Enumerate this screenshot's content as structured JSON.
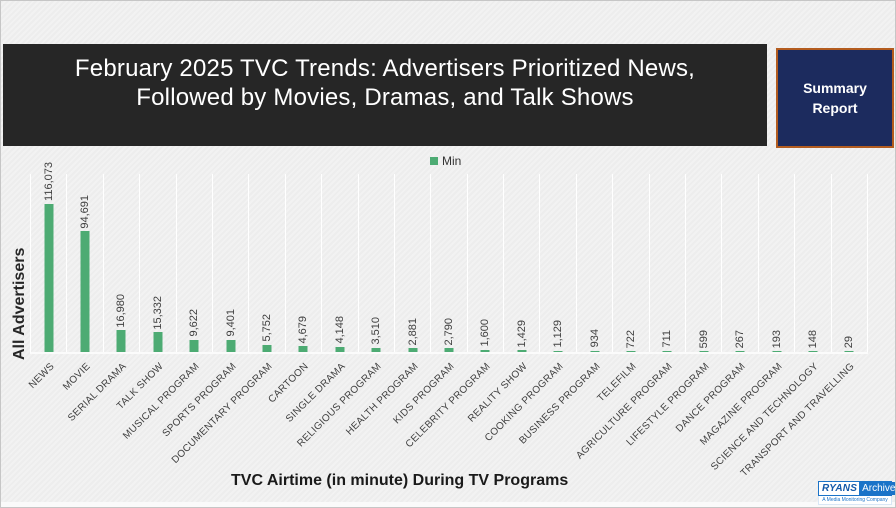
{
  "header": {
    "title_line1": "February 2025 TVC Trends: Advertisers Prioritized News,",
    "title_line2": "Followed by Movies, Dramas, and Talk Shows",
    "summary_button_label": "Summary Report"
  },
  "legend": {
    "label": "Min",
    "color": "#4dab73"
  },
  "chart_data": {
    "type": "bar",
    "title": "",
    "xlabel": "TVC Airtime (in minute) During TV Programs",
    "ylabel": "All Advertisers",
    "legend_entries": [
      "Min"
    ],
    "legend_position": "top",
    "grid": "vertical-white-lines",
    "bar_color": "#4dab73",
    "ylim": [
      0,
      120000
    ],
    "categories": [
      "NEWS",
      "MOVIE",
      "SERIAL DRAMA",
      "TALK SHOW",
      "MUSICAL PROGRAM",
      "SPORTS PROGRAM",
      "DOCUMENTARY PROGRAM",
      "CARTOON",
      "SINGLE DRAMA",
      "RELIGIOUS PROGRAM",
      "HEALTH PROGRAM",
      "KIDS PROGRAM",
      "CELEBRITY PROGRAM",
      "REALITY SHOW",
      "COOKING PROGRAM",
      "BUSINESS PROGRAM",
      "TELEFILM",
      "AGRICULTURE PROGRAM",
      "LIFESTYLE PROGRAM",
      "DANCE PROGRAM",
      "MAGAZINE PROGRAM",
      "SCIENCE AND TECHNOLOGY",
      "TRANSPORT  AND TRAVELLING"
    ],
    "values": [
      116073,
      94691,
      16980,
      15332,
      9622,
      9401,
      5752,
      4679,
      4148,
      3510,
      2881,
      2790,
      1600,
      1429,
      1129,
      934,
      722,
      711,
      599,
      267,
      193,
      148,
      29
    ]
  },
  "colors": {
    "banner_bg": "#262626",
    "button_bg": "#1c2b5e",
    "button_border": "#b35c1f",
    "page_bg": "#f2f2f2",
    "logo_blue": "#1a73c8"
  },
  "footer": {
    "logo": {
      "brand": "RYANS",
      "product": "Archive",
      "tagline": "A Media Monitoring Company"
    }
  }
}
